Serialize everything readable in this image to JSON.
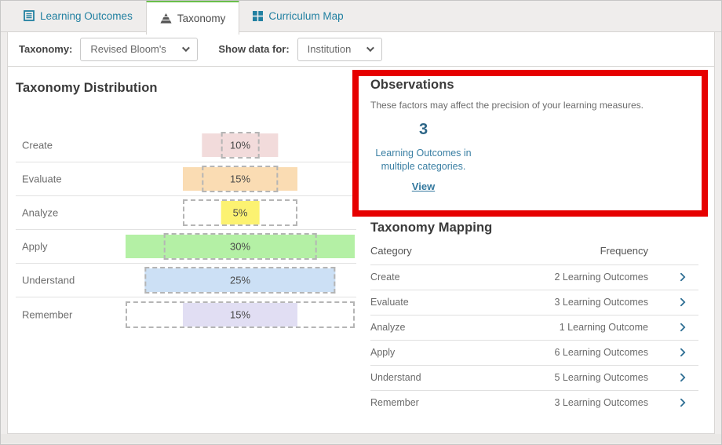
{
  "tabs": [
    {
      "label": "Learning Outcomes",
      "icon": "list-icon",
      "active": false
    },
    {
      "label": "Taxonomy",
      "icon": "pyramid-icon",
      "active": true
    },
    {
      "label": "Curriculum Map",
      "icon": "grid-icon",
      "active": false
    }
  ],
  "filters": {
    "taxonomy_label": "Taxonomy:",
    "taxonomy_value": "Revised Bloom's",
    "show_data_label": "Show data for:",
    "show_data_value": "Institution"
  },
  "chart_data": {
    "type": "bar",
    "title": "Taxonomy Distribution",
    "orientation": "horizontal-centered",
    "categories": [
      "Create",
      "Evaluate",
      "Analyze",
      "Apply",
      "Understand",
      "Remember"
    ],
    "series": [
      {
        "name": "Actual percentage (solid bar)",
        "values": [
          10,
          15,
          5,
          30,
          25,
          15
        ]
      },
      {
        "name": "Expected range (dashed box)",
        "values": [
          5,
          10,
          15,
          20,
          25,
          30
        ]
      }
    ],
    "value_labels": [
      "10%",
      "15%",
      "5%",
      "30%",
      "25%",
      "15%"
    ],
    "bar_colors": [
      "#f2dbdb",
      "#fadcb3",
      "#fcf271",
      "#b4f0a5",
      "#cce0f5",
      "#e1def3"
    ],
    "xlim": [
      0,
      30
    ],
    "grid": "row-separators",
    "legend": "none"
  },
  "observations": {
    "title": "Observations",
    "description": "These factors may affect the precision of your learning measures.",
    "count": "3",
    "count_label": "Learning Outcomes in multiple categories.",
    "link": "View",
    "highlight_color": "#e60000"
  },
  "mapping": {
    "title": "Taxonomy Mapping",
    "columns": [
      "Category",
      "Frequency"
    ],
    "rows": [
      {
        "category": "Create",
        "frequency": "2 Learning Outcomes"
      },
      {
        "category": "Evaluate",
        "frequency": "3 Learning Outcomes"
      },
      {
        "category": "Analyze",
        "frequency": "1 Learning Outcome"
      },
      {
        "category": "Apply",
        "frequency": "6 Learning Outcomes"
      },
      {
        "category": "Understand",
        "frequency": "5 Learning Outcomes"
      },
      {
        "category": "Remember",
        "frequency": "3 Learning Outcomes"
      }
    ]
  },
  "colors": {
    "tab_text": "#2180a1",
    "active_tab_accent": "#6abf4b",
    "link_blue": "#33789e",
    "stat_blue": "#2d6687",
    "annotation_red": "#e60000"
  }
}
